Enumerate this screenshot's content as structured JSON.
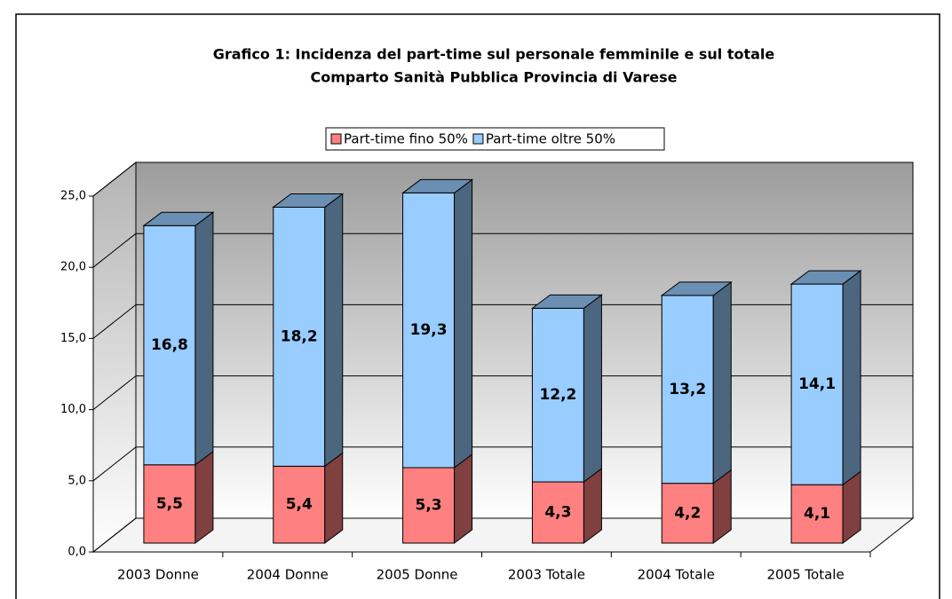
{
  "chart_data": {
    "type": "bar3d_stacked",
    "title": "Grafico 1: Incidenza del part-time sul personale femminile e sul totale",
    "subtitle": "Comparto Sanità Pubblica Provincia di Varese",
    "categories": [
      "2003 Donne",
      "2004 Donne",
      "2005 Donne",
      "2003 Totale",
      "2004 Totale",
      "2005 Totale"
    ],
    "series": [
      {
        "name": "Part-time fino 50%",
        "color": "#ff8080",
        "values": [
          5.5,
          5.4,
          5.3,
          4.3,
          4.2,
          4.1
        ],
        "value_labels": [
          "5,5",
          "5,4",
          "5,3",
          "4,3",
          "4,2",
          "4,1"
        ]
      },
      {
        "name": "Part-time oltre 50%",
        "color": "#99ccff",
        "values": [
          16.8,
          18.2,
          19.3,
          12.2,
          13.2,
          14.1
        ],
        "value_labels": [
          "16,8",
          "18,2",
          "19,3",
          "12,2",
          "13,2",
          "14,1"
        ]
      }
    ],
    "ylim": [
      0,
      25
    ],
    "yticks": [
      {
        "value": 0,
        "label": "0,0"
      },
      {
        "value": 5,
        "label": "5,0"
      },
      {
        "value": 10,
        "label": "10,0"
      },
      {
        "value": 15,
        "label": "15,0"
      },
      {
        "value": 20,
        "label": "20,0"
      },
      {
        "value": 25,
        "label": "25,0"
      }
    ],
    "grid": true,
    "legend": "top"
  }
}
